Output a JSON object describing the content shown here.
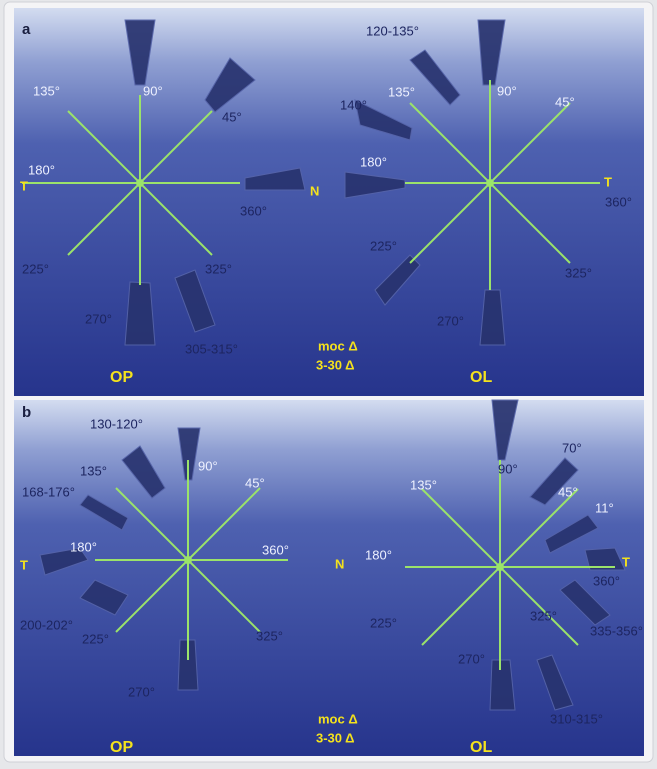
{
  "panels": [
    {
      "label": "a",
      "north": "N",
      "note": [
        "moc Δ",
        "3-30 Δ"
      ],
      "op": "OP",
      "ol": "OL",
      "left_labels": [
        "135°",
        "90°",
        "45°",
        "180°",
        "T",
        "360°",
        "225°",
        "270°",
        "325°",
        "305-315°"
      ],
      "right_labels": [
        "120-135°",
        "140°",
        "135°",
        "90°",
        "45°",
        "T",
        "360°",
        "180°",
        "225°",
        "325°",
        "270°"
      ]
    },
    {
      "label": "b",
      "north": "N",
      "note": [
        "moc Δ",
        "3-30 Δ"
      ],
      "op": "OP",
      "ol": "OL",
      "left_labels": [
        "130-120°",
        "135°",
        "90°",
        "45°",
        "168-176°",
        "180°",
        "T",
        "360°",
        "200-202°",
        "225°",
        "325°",
        "270°"
      ],
      "right_labels": [
        "90°",
        "70°",
        "135°",
        "45°",
        "11°",
        "180°",
        "T",
        "360°",
        "225°",
        "325°",
        "335-356°",
        "270°",
        "310-315°"
      ]
    }
  ]
}
